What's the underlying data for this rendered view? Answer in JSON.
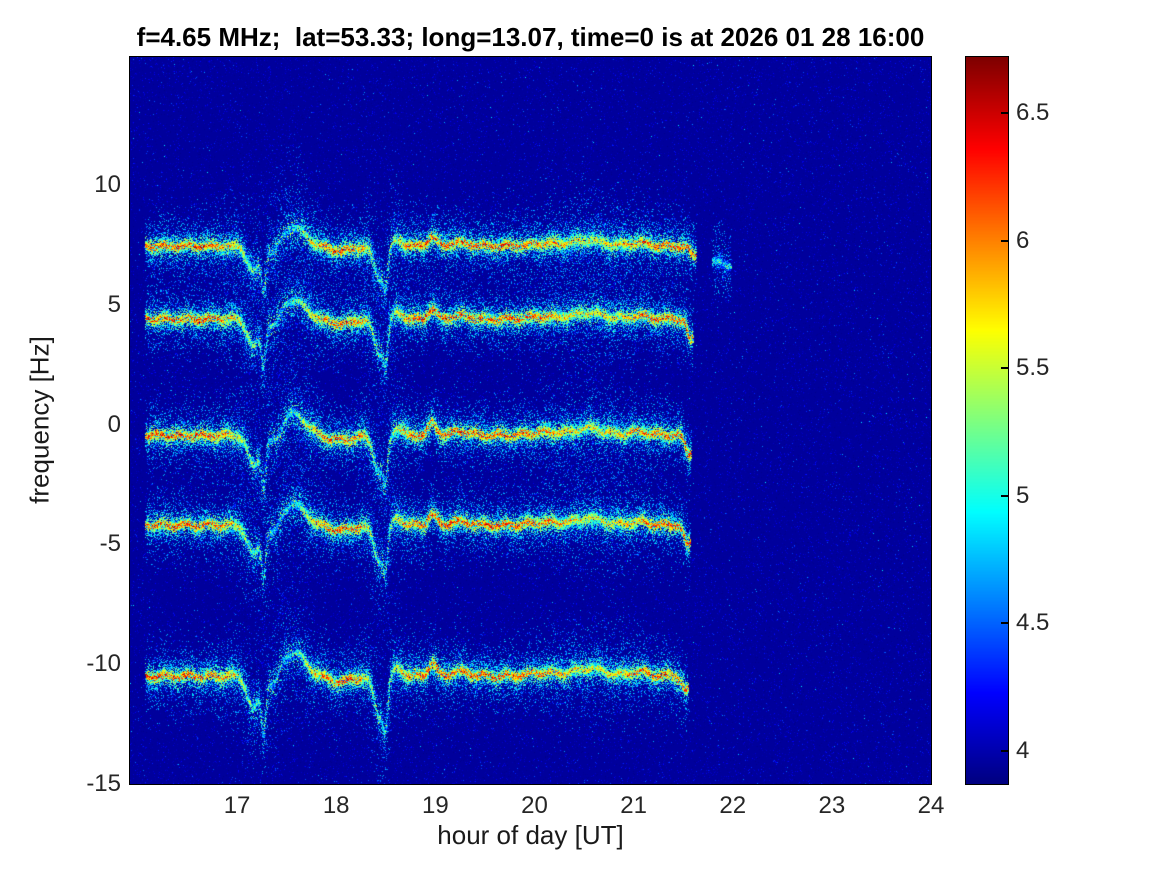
{
  "figure": {
    "title": "f=4.65 MHz;  lat=53.33; long=13.07, time=0 is at 2026 01 28 16:00",
    "xlabel": "hour of day [UT]",
    "ylabel": "frequency [Hz]"
  },
  "chart_data": {
    "type": "heatmap",
    "title": "f=4.65 MHz;  lat=53.33; long=13.07, time=0 is at 2026 01 28 16:00",
    "xlabel": "hour of day [UT]",
    "ylabel": "frequency [Hz]",
    "xlim": [
      15.92,
      24.0
    ],
    "ylim": [
      -15,
      15.35
    ],
    "x_ticks": [
      17,
      18,
      19,
      20,
      21,
      22,
      23,
      24
    ],
    "y_ticks": [
      10,
      5,
      0,
      -5,
      -10,
      -15
    ],
    "colormap": "jet",
    "colorbar": {
      "min": 3.87,
      "max": 6.72,
      "ticks": [
        4,
        4.5,
        5,
        5.5,
        6,
        6.5
      ]
    },
    "background_value": 3.95,
    "signal": {
      "t_start": 16.08,
      "t_end": 21.6,
      "traces": [
        {
          "base": 7.45,
          "t0": 16.08,
          "t1": 21.63,
          "amp": 0.9,
          "end_drop": 0.4
        },
        {
          "base": 4.4,
          "t0": 16.08,
          "t1": 21.6,
          "amp": 0.95,
          "end_drop": 0.9
        },
        {
          "base": -0.45,
          "t0": 16.08,
          "t1": 21.58,
          "amp": 1.05,
          "end_drop": 0.8
        },
        {
          "base": -4.2,
          "t0": 16.08,
          "t1": 21.57,
          "amp": 1.0,
          "end_drop": 0.9
        },
        {
          "base": -10.5,
          "t0": 16.08,
          "t1": 21.55,
          "amp": 1.15,
          "end_drop": 0.6
        },
        {
          "base": 6.8,
          "t0": 21.8,
          "t1": 21.98,
          "amp": 0.3,
          "end_drop": 0.2,
          "faint": true
        }
      ],
      "waveform": {
        "bumps": [
          [
            17.17,
            0.06,
            -1.2
          ],
          [
            17.27,
            0.022,
            -1.8
          ],
          [
            17.38,
            0.05,
            -0.5
          ],
          [
            17.57,
            0.12,
            0.85
          ],
          [
            18.05,
            0.12,
            -0.2
          ],
          [
            18.44,
            0.055,
            -1.5
          ],
          [
            18.5,
            0.02,
            -1.2
          ],
          [
            18.62,
            0.05,
            0.3
          ],
          [
            18.97,
            0.04,
            0.45
          ],
          [
            19.25,
            0.1,
            0.15
          ],
          [
            20.1,
            0.15,
            0.12
          ],
          [
            20.55,
            0.15,
            0.28
          ],
          [
            21.05,
            0.1,
            0.15
          ]
        ],
        "wiggle": {
          "amp": 0.07,
          "period": 0.23
        }
      },
      "fuzz_bumps": [
        [
          17.3,
          0.22,
          1.6
        ],
        [
          18.47,
          0.12,
          1.6
        ],
        [
          17.6,
          0.15,
          0.8
        ],
        [
          20.6,
          0.3,
          0.7
        ]
      ]
    }
  }
}
